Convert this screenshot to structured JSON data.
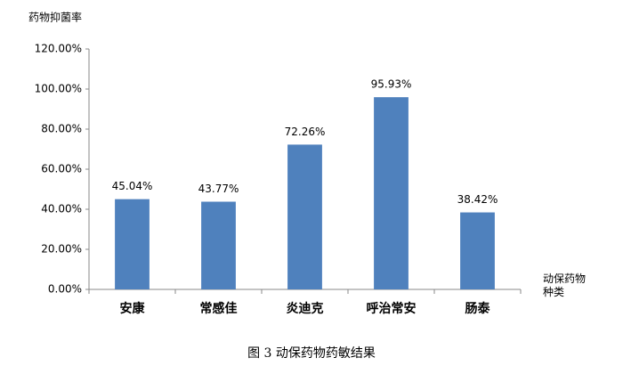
{
  "chart_data": {
    "type": "bar",
    "y_label": "药物抑菌率",
    "x_label": "动保药物种类",
    "caption": "图 3  动保药物药敏结果",
    "categories": [
      "安康",
      "常感佳",
      "炎迪克",
      "呼治常安",
      "肠泰"
    ],
    "values": [
      45.04,
      43.77,
      72.26,
      95.93,
      38.42
    ],
    "value_labels": [
      "45.04%",
      "43.77%",
      "72.26%",
      "95.93%",
      "38.42%"
    ],
    "color": "#4f81bd",
    "ylim": [
      0,
      120
    ],
    "yticks": [
      {
        "value": 0,
        "label": "0.00%"
      },
      {
        "value": 20,
        "label": "20.00%"
      },
      {
        "value": 40,
        "label": "40.00%"
      },
      {
        "value": 60,
        "label": "60.00%"
      },
      {
        "value": 80,
        "label": "80.00%"
      },
      {
        "value": 100,
        "label": "100.00%"
      },
      {
        "value": 120,
        "label": "120.00%"
      }
    ],
    "grid": false
  }
}
